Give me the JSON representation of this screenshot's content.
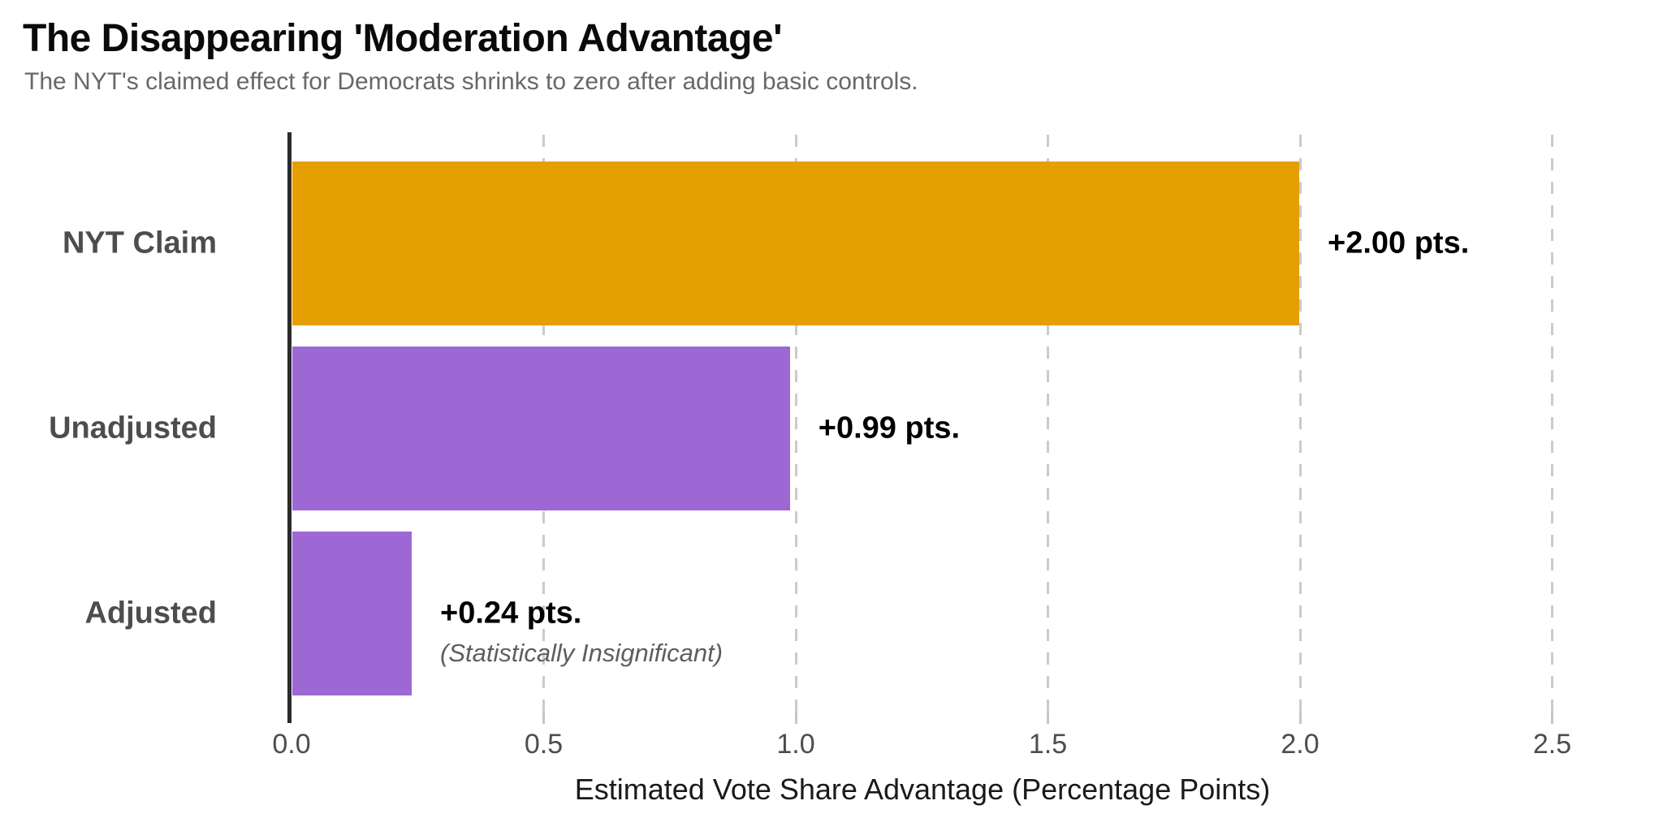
{
  "header": {
    "title": "The Disappearing 'Moderation Advantage'",
    "subtitle": "The NYT's claimed effect for Democrats shrinks to zero after adding basic controls."
  },
  "chart_data": {
    "type": "bar",
    "orientation": "horizontal",
    "title": "The Disappearing 'Moderation Advantage'",
    "subtitle": "The NYT's claimed effect for Democrats shrinks to zero after adding basic controls.",
    "categories": [
      "NYT Claim",
      "Unadjusted",
      "Adjusted"
    ],
    "values": [
      2.0,
      0.99,
      0.24
    ],
    "value_labels": [
      "+2.00 pts.",
      "+0.99 pts.",
      "+0.24 pts."
    ],
    "annotations": [
      "",
      "",
      "(Statistically Insignificant)"
    ],
    "bar_color_keys": [
      "nyt-claim-bar",
      "unadjusted-bar",
      "adjusted-bar"
    ],
    "bar_colors": [
      "#E69F00",
      "#9D68D4",
      "#9D68D4"
    ],
    "xlabel": "Estimated Vote Share Advantage (Percentage Points)",
    "x_ticks": [
      0.0,
      0.5,
      1.0,
      1.5,
      2.0,
      2.5
    ],
    "x_tick_labels": [
      "0.0",
      "0.5",
      "1.0",
      "1.5",
      "2.0",
      "2.5"
    ],
    "xlim": [
      0,
      2.72
    ],
    "grid": "vertical-dashed",
    "legend": "none"
  },
  "colors": {
    "background": "#ffffff",
    "nyt_claim_orange": "#E69F00",
    "estimate_purple": "#9D68D4",
    "axis_line": "#2b2b2b",
    "gridline": "#cbcbcb",
    "tick_label": "#4d4d4d",
    "category_label": "#4d4d4d",
    "value_label": "#000000",
    "annotation_gray": "#5e5e5e",
    "subtitle_gray": "#686868"
  }
}
